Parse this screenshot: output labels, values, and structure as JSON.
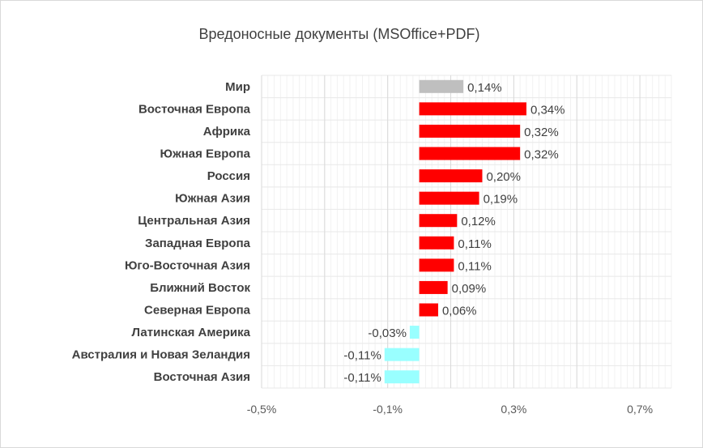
{
  "chart_data": {
    "type": "bar",
    "orientation": "horizontal",
    "title": "Вредоносные документы (MSOffice+PDF)",
    "xlabel": "",
    "ylabel": "",
    "xlim": [
      -0.5,
      0.8
    ],
    "grid": true,
    "legend": "none",
    "categories": [
      "Мир",
      "Восточная Европа",
      "Африка",
      "Южная Европа",
      "Россия",
      "Южная Азия",
      "Центральная Азия",
      "Западная  Европа",
      "Юго-Восточная  Азия",
      "Ближний Восток",
      "Северная Европа",
      "Латинская Америка",
      "Австралия и Новая Зеландия",
      "Восточная Азия"
    ],
    "values": [
      0.14,
      0.34,
      0.32,
      0.32,
      0.2,
      0.19,
      0.12,
      0.11,
      0.11,
      0.09,
      0.06,
      -0.03,
      -0.11,
      -0.11
    ],
    "data_labels": [
      "0,14%",
      "0,34%",
      "0,32%",
      "0,32%",
      "0,20%",
      "0,19%",
      "0,12%",
      "0,11%",
      "0,11%",
      "0,09%",
      "0,06%",
      "-0,03%",
      "-0,11%",
      "-0,11%"
    ],
    "bar_colors": [
      "#bfbfbf",
      "#ff0000",
      "#ff0000",
      "#ff0000",
      "#ff0000",
      "#ff0000",
      "#ff0000",
      "#ff0000",
      "#ff0000",
      "#ff0000",
      "#ff0000",
      "#99ffff",
      "#99ffff",
      "#99ffff"
    ],
    "x_ticks": [
      -0.5,
      -0.1,
      0.3,
      0.7
    ],
    "x_tick_labels": [
      "-0,5%",
      "-0,1%",
      "0,3%",
      "0,7%"
    ]
  }
}
